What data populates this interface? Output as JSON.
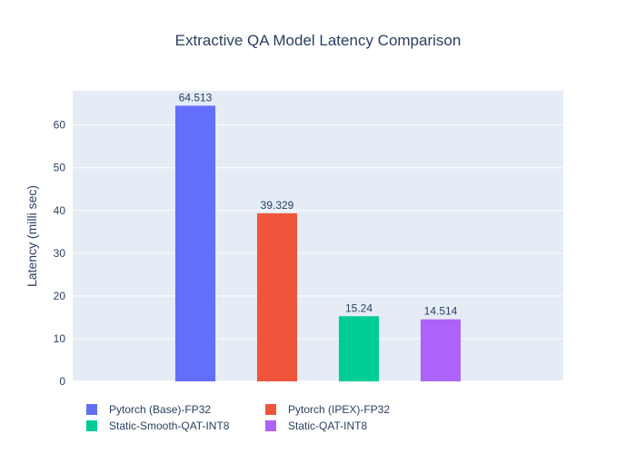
{
  "chart_data": {
    "type": "bar",
    "title": "Extractive QA Model Latency Comparison",
    "xlabel": "",
    "ylabel": "Latency (milli sec)",
    "ylim": [
      0,
      68
    ],
    "yticks": [
      0,
      10,
      20,
      30,
      40,
      50,
      60
    ],
    "grid": true,
    "legend_position": "bottom",
    "series": [
      {
        "name": "Pytorch (Base)-FP32",
        "value": 64.513,
        "label": "64.513",
        "color": "#636efa"
      },
      {
        "name": "Pytorch (IPEX)-FP32",
        "value": 39.329,
        "label": "39.329",
        "color": "#ef553b"
      },
      {
        "name": "Static-Smooth-QAT-INT8",
        "value": 15.24,
        "label": "15.24",
        "color": "#00cc96"
      },
      {
        "name": "Static-QAT-INT8",
        "value": 14.514,
        "label": "14.514",
        "color": "#ab63fa"
      }
    ],
    "plot_background": "#e5ecf6"
  }
}
